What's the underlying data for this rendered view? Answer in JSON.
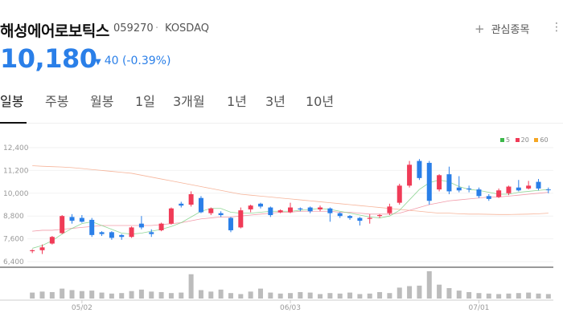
{
  "stock": {
    "name": "해성에어로보틱스",
    "code": "059270",
    "separator": "·",
    "market": "KOSDAQ",
    "watch_label": "관심종목",
    "watch_icon": "plus-icon",
    "more_icon": "more-icon",
    "price": "10,180",
    "change_icon": "down-triangle-icon",
    "change": "40 (-0.39%)",
    "down_color": "#2a7fe8",
    "up_color": "#f03b57"
  },
  "tabs": [
    "일봉",
    "주봉",
    "월봉",
    "1일",
    "3개월",
    "1년",
    "3년",
    "10년"
  ],
  "legend": {
    "ma5": "5",
    "ma20": "20",
    "ma60": "60"
  },
  "chart_data": {
    "type": "candlestick",
    "y_ticks": [
      "12,400",
      "11,200",
      "10,000",
      "8,800",
      "7,600",
      "6,400"
    ],
    "ylim": [
      6400,
      12400
    ],
    "x_ticks": [
      {
        "label": "05/02",
        "index": 5
      },
      {
        "label": "06/03",
        "index": 26
      },
      {
        "label": "07/01",
        "index": 45
      }
    ],
    "candles": [
      [
        6950,
        7000,
        6850,
        7050
      ],
      [
        7000,
        7150,
        6800,
        7300
      ],
      [
        7350,
        7700,
        7300,
        7750
      ],
      [
        7900,
        8800,
        7850,
        8850
      ],
      [
        8750,
        8550,
        8400,
        8900
      ],
      [
        8700,
        8500,
        8450,
        8850
      ],
      [
        8600,
        7800,
        7700,
        8700
      ],
      [
        7950,
        7850,
        7750,
        8000
      ],
      [
        7950,
        7650,
        7550,
        8000
      ],
      [
        7800,
        7700,
        7550,
        7850
      ],
      [
        7700,
        8200,
        7650,
        8250
      ],
      [
        8400,
        8200,
        8100,
        8800
      ],
      [
        7950,
        7850,
        7700,
        8100
      ],
      [
        8050,
        8400,
        8000,
        8450
      ],
      [
        8400,
        9200,
        8350,
        9250
      ],
      [
        9450,
        9350,
        9250,
        9550
      ],
      [
        9400,
        9950,
        9300,
        10100
      ],
      [
        9750,
        9000,
        8950,
        9850
      ],
      [
        8950,
        9200,
        8850,
        9250
      ],
      [
        8950,
        8850,
        8750,
        9050
      ],
      [
        8700,
        8050,
        7950,
        8750
      ],
      [
        8200,
        9100,
        8150,
        9250
      ],
      [
        9150,
        9350,
        9000,
        9400
      ],
      [
        9450,
        9300,
        9200,
        9500
      ],
      [
        9250,
        8850,
        8750,
        9300
      ],
      [
        9000,
        9100,
        8950,
        9150
      ],
      [
        9000,
        9250,
        8950,
        9500
      ],
      [
        9200,
        9150,
        9050,
        9250
      ],
      [
        9250,
        9050,
        8950,
        9300
      ],
      [
        9150,
        9250,
        9050,
        9350
      ],
      [
        9200,
        8950,
        8500,
        9250
      ],
      [
        8950,
        8800,
        8700,
        9000
      ],
      [
        8800,
        8700,
        8600,
        8850
      ],
      [
        8700,
        8550,
        8300,
        8750
      ],
      [
        8650,
        8700,
        8400,
        8900
      ],
      [
        8800,
        8850,
        8700,
        8900
      ],
      [
        8950,
        9300,
        8850,
        9450
      ],
      [
        9500,
        10400,
        9400,
        10500
      ],
      [
        10400,
        11500,
        10300,
        11700
      ],
      [
        11700,
        10800,
        10700,
        11800
      ],
      [
        11600,
        9600,
        9400,
        11700
      ],
      [
        10200,
        10950,
        10100,
        11000
      ],
      [
        11000,
        10100,
        9950,
        11400
      ],
      [
        10300,
        10150,
        10050,
        10900
      ],
      [
        10250,
        10200,
        10050,
        10400
      ],
      [
        10200,
        9850,
        9750,
        10300
      ],
      [
        9850,
        9700,
        9600,
        9950
      ],
      [
        9800,
        10150,
        9750,
        10250
      ],
      [
        10000,
        10350,
        9900,
        10400
      ],
      [
        10300,
        10150,
        10100,
        10700
      ],
      [
        10250,
        10400,
        10200,
        10650
      ],
      [
        10600,
        10250,
        10150,
        10750
      ],
      [
        10200,
        10180,
        10000,
        10300
      ]
    ],
    "ma5": [
      7100,
      7250,
      7500,
      7850,
      8150,
      8400,
      8500,
      8300,
      8100,
      7900,
      7850,
      7900,
      8000,
      8100,
      8250,
      8450,
      8750,
      9050,
      9200,
      9200,
      9000,
      8950,
      8950,
      9000,
      9050,
      9050,
      9050,
      9100,
      9150,
      9200,
      9150,
      9050,
      8950,
      8850,
      8750,
      8700,
      8800,
      9100,
      9650,
      10200,
      10550,
      10700,
      10600,
      10350,
      10200,
      10150,
      10050,
      9950,
      9950,
      10050,
      10100,
      10150,
      10200
    ],
    "ma20": [
      8000,
      8050,
      8050,
      8100,
      8150,
      8200,
      8250,
      8300,
      8300,
      8300,
      8300,
      8300,
      8300,
      8350,
      8400,
      8450,
      8550,
      8650,
      8700,
      8750,
      8750,
      8800,
      8850,
      8900,
      8950,
      9000,
      9000,
      9050,
      9050,
      9050,
      9050,
      9000,
      9000,
      8950,
      8900,
      8900,
      8900,
      8950,
      9100,
      9250,
      9400,
      9500,
      9600,
      9650,
      9700,
      9750,
      9800,
      9800,
      9850,
      9900,
      9950,
      10000,
      10050
    ],
    "ma60": [
      11450,
      11420,
      11400,
      11380,
      11350,
      11300,
      11250,
      11200,
      11150,
      11100,
      11050,
      10950,
      10850,
      10750,
      10650,
      10550,
      10450,
      10350,
      10250,
      10150,
      10050,
      9950,
      9900,
      9850,
      9800,
      9750,
      9700,
      9650,
      9600,
      9550,
      9500,
      9450,
      9400,
      9350,
      9300,
      9250,
      9200,
      9150,
      9100,
      9050,
      9000,
      8950,
      8950,
      8920,
      8900,
      8900,
      8890,
      8880,
      8880,
      8890,
      8900,
      8920,
      8950
    ],
    "volume": [
      12,
      14,
      13,
      20,
      17,
      15,
      16,
      12,
      10,
      11,
      15,
      18,
      14,
      13,
      11,
      12,
      49,
      17,
      14,
      18,
      11,
      9,
      14,
      20,
      12,
      10,
      11,
      13,
      12,
      9,
      11,
      10,
      12,
      9,
      10,
      13,
      11,
      22,
      25,
      26,
      55,
      28,
      21,
      16,
      13,
      11,
      10,
      9,
      10,
      11,
      12,
      10,
      9
    ]
  }
}
